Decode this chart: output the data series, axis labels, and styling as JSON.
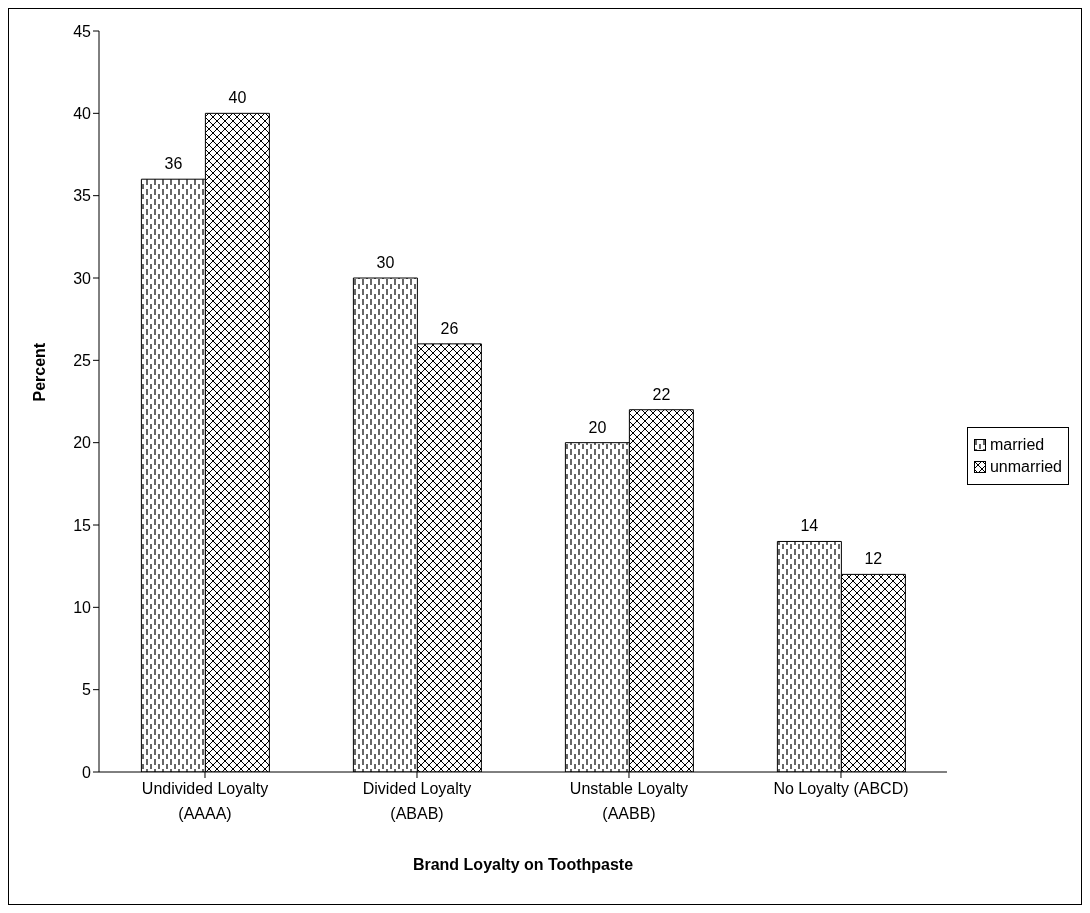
{
  "chart_data": {
    "type": "bar",
    "xlabel": "Brand Loyalty on Toothpaste",
    "ylabel": "Percent",
    "categories": [
      "Undivided Loyalty (AAAA)",
      "Divided Loyalty (ABAB)",
      "Unstable Loyalty (AABB)",
      "No Loyalty (ABCD)"
    ],
    "series": [
      {
        "name": "married",
        "color": "#000000",
        "values": [
          36,
          30,
          20,
          14
        ]
      },
      {
        "name": "unmarried",
        "color": "#000000",
        "values": [
          40,
          26,
          22,
          12
        ]
      }
    ],
    "ylim": [
      0,
      45
    ],
    "yticks": [
      0,
      5,
      10,
      15,
      20,
      25,
      30,
      35,
      40,
      45
    ],
    "grid": false,
    "legend": "right",
    "data_labels": true
  }
}
